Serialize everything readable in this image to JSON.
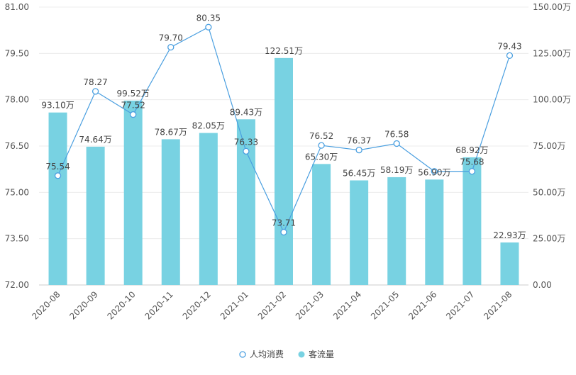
{
  "chart_data": {
    "type": "bar+line",
    "categories": [
      "2020-08",
      "2020-09",
      "2020-10",
      "2020-11",
      "2020-12",
      "2021-01",
      "2021-02",
      "2021-03",
      "2021-04",
      "2021-05",
      "2021-06",
      "2021-07",
      "2021-08"
    ],
    "series": [
      {
        "name": "人均消费",
        "type": "line",
        "axis": "left",
        "color": "#4a9fe0",
        "values": [
          75.54,
          78.27,
          77.52,
          79.7,
          80.35,
          76.33,
          73.71,
          76.52,
          76.37,
          76.58,
          75.68,
          75.68,
          79.43
        ],
        "labels": [
          "75.54",
          "78.27",
          "77.52",
          "79.70",
          "80.35",
          "76.33",
          "73.71",
          "76.52",
          "76.37",
          "76.58",
          "",
          "75.68",
          "79.43"
        ]
      },
      {
        "name": "客流量",
        "type": "bar",
        "axis": "right",
        "color": "#78d2e2",
        "values": [
          93.1,
          74.64,
          99.52,
          78.67,
          82.05,
          89.43,
          122.51,
          65.3,
          56.45,
          58.19,
          56.9,
          68.92,
          22.93
        ],
        "labels": [
          "93.10万",
          "74.64万",
          "99.52万",
          "78.67万",
          "82.05万",
          "89.43万",
          "122.51万",
          "65.30万",
          "56.45万",
          "58.19万",
          "56.90万",
          "68.92万",
          "22.93万"
        ]
      }
    ],
    "y_left": {
      "min": 72.0,
      "max": 81.0,
      "ticks": [
        "72.00",
        "73.50",
        "75.00",
        "76.50",
        "78.00",
        "79.50",
        "81.00"
      ]
    },
    "y_right": {
      "min": 0,
      "max": 150,
      "ticks": [
        "0.00",
        "25.00万",
        "50.00万",
        "75.00万",
        "100.00万",
        "125.00万",
        "150.00万"
      ]
    },
    "grid": true,
    "legend_position": "bottom"
  }
}
